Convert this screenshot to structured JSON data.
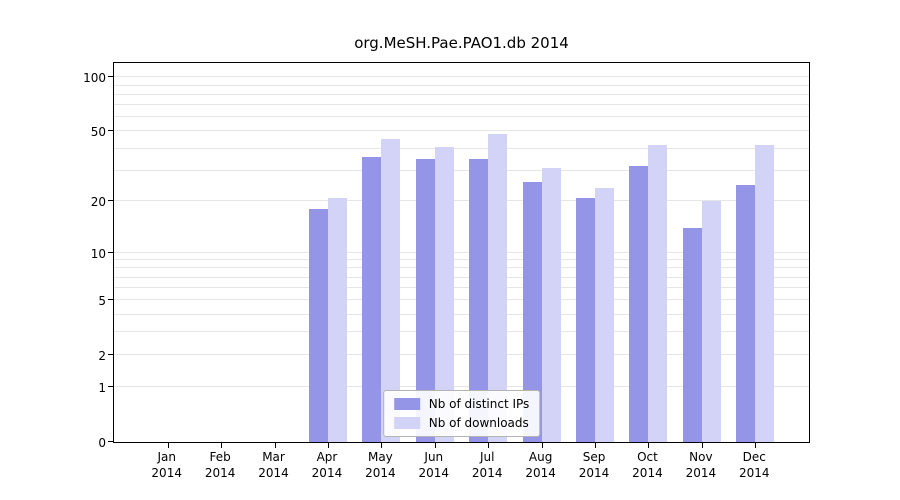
{
  "title": "org.MeSH.Pae.PAO1.db 2014",
  "chart_data": {
    "type": "bar",
    "title": "org.MeSH.Pae.PAO1.db 2014",
    "scale": "log1p",
    "categories": [
      "Jan",
      "Feb",
      "Mar",
      "Apr",
      "May",
      "Jun",
      "Jul",
      "Aug",
      "Sep",
      "Oct",
      "Nov",
      "Dec"
    ],
    "year": "2014",
    "series": [
      {
        "name": "Nb of distinct IPs",
        "color": "#9595e8",
        "values": [
          0,
          0,
          0,
          18,
          36,
          35,
          35,
          26,
          21,
          32,
          14,
          25
        ]
      },
      {
        "name": "Nb of downloads",
        "color": "#d3d3f7",
        "values": [
          0,
          0,
          0,
          21,
          45,
          41,
          48,
          31,
          24,
          42,
          20,
          42
        ]
      }
    ],
    "y_ticks": [
      0,
      1,
      2,
      5,
      10,
      20,
      50,
      100
    ],
    "grid_values": [
      1,
      2,
      3,
      4,
      5,
      6,
      7,
      8,
      9,
      10,
      20,
      30,
      40,
      50,
      60,
      70,
      80,
      90,
      100
    ],
    "ylim": [
      0,
      120
    ],
    "xlabel": "",
    "ylabel": "",
    "grid": true,
    "legend_position": "bottom-center"
  },
  "legend": {
    "items": [
      {
        "label": "Nb of distinct IPs",
        "color": "#9595e8"
      },
      {
        "label": "Nb of downloads",
        "color": "#d3d3f7"
      }
    ]
  }
}
